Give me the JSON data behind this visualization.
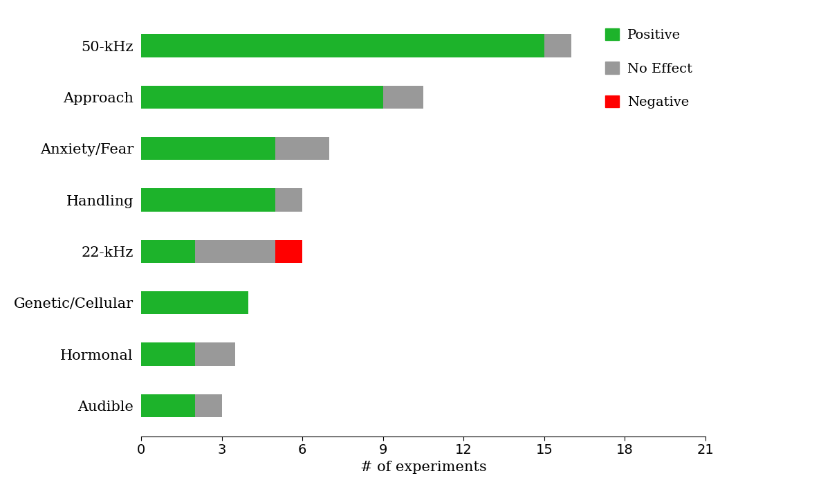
{
  "categories": [
    "50-kHz",
    "Approach",
    "Anxiety/Fear",
    "Handling",
    "22-kHz",
    "Genetic/Cellular",
    "Hormonal",
    "Audible"
  ],
  "positive": [
    15,
    9,
    5,
    5,
    2,
    4,
    2,
    2
  ],
  "no_effect": [
    1,
    1.5,
    2,
    1,
    3,
    0,
    1.5,
    1
  ],
  "negative": [
    0,
    0,
    0,
    0,
    1,
    0,
    0,
    0
  ],
  "colors": {
    "positive": "#1db32b",
    "no_effect": "#999999",
    "negative": "#ff0000"
  },
  "xlabel": "# of experiments",
  "xlim": [
    0,
    21
  ],
  "xticks": [
    0,
    3,
    6,
    9,
    12,
    15,
    18,
    21
  ],
  "legend_labels": [
    "Positive",
    "No Effect",
    "Negative"
  ],
  "bar_height": 0.45,
  "figure_bg": "#ffffff",
  "axes_bg": "#ffffff",
  "label_fontsize": 15,
  "tick_fontsize": 14,
  "legend_fontsize": 14
}
